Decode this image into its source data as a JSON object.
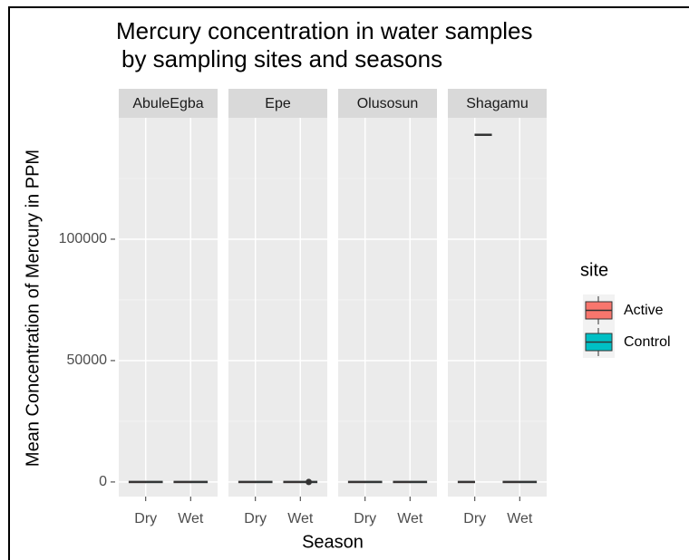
{
  "chart_data": {
    "type": "box",
    "title": [
      "Mercury concentration in water samples",
      "by sampling sites and seasons"
    ],
    "x_label": "Season",
    "y_label": "Mean Concentration of Mercury in PPM",
    "legend_title": "site",
    "facets": [
      "AbuleEgba",
      "Epe",
      "Olusosun",
      "Shagamu"
    ],
    "categories": [
      "Dry",
      "Wet"
    ],
    "series": [
      {
        "name": "Active",
        "color": "#f8766d",
        "values": [
          [
            0,
            0
          ],
          [
            0,
            0
          ],
          [
            0,
            0
          ],
          [
            0,
            0
          ]
        ],
        "outliers": [
          [
            [],
            []
          ],
          [
            [],
            []
          ],
          [
            [],
            []
          ],
          [
            [],
            []
          ]
        ]
      },
      {
        "name": "Control",
        "color": "#00bfc4",
        "values": [
          [
            0,
            0
          ],
          [
            0,
            0
          ],
          [
            0,
            0
          ],
          [
            143000,
            0
          ]
        ],
        "outliers": [
          [
            [],
            []
          ],
          [
            [],
            [
              0
            ]
          ],
          [
            [],
            []
          ],
          [
            [],
            []
          ]
        ]
      }
    ],
    "ylim": [
      -6000,
      150000
    ],
    "yticks": [
      0,
      50000,
      100000
    ],
    "minor_yticks": [
      25000,
      75000,
      125000
    ],
    "grid": true
  }
}
